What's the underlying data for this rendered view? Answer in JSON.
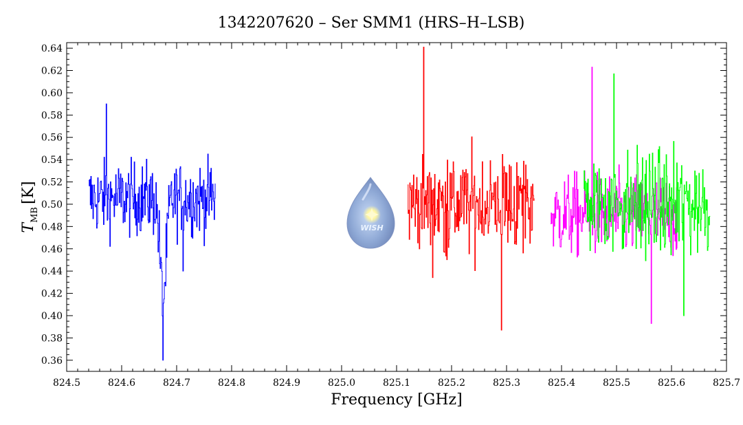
{
  "chart_data": {
    "type": "line",
    "title": "1342207620 – Ser SMM1 (HRS–H–LSB)",
    "xlabel": "Frequency [GHz]",
    "ylabel_main": "T",
    "ylabel_sub": "MB",
    "ylabel_unit": "[K]",
    "xlim": [
      824.5,
      825.7
    ],
    "ylim": [
      0.35,
      0.645
    ],
    "xticks": [
      "824.5",
      "824.6",
      "824.7",
      "824.8",
      "824.9",
      "825.0",
      "825.1",
      "825.2",
      "825.3",
      "825.4",
      "825.5",
      "825.6",
      "825.7"
    ],
    "yticks": [
      "0.36",
      "0.38",
      "0.40",
      "0.42",
      "0.44",
      "0.46",
      "0.48",
      "0.50",
      "0.52",
      "0.54",
      "0.56",
      "0.58",
      "0.60",
      "0.62",
      "0.64"
    ],
    "grid": false,
    "logo_text": "WISH",
    "series": [
      {
        "color": "#0000ff",
        "x_range": [
          824.54,
          824.77
        ],
        "points": 240,
        "baseline": 0.505,
        "noise": 0.03,
        "absorption": {
          "center": 824.675,
          "depth": 0.09,
          "width": 0.008
        },
        "extremes": {
          "min": 0.36,
          "max": 0.59
        }
      },
      {
        "color": "#ff0000",
        "x_range": [
          825.12,
          825.35
        ],
        "points": 240,
        "baseline": 0.5,
        "noise": 0.042,
        "extremes": {
          "min": 0.387,
          "max": 0.641
        }
      },
      {
        "color": "#ff00ff",
        "x_range": [
          825.38,
          825.61
        ],
        "points": 240,
        "baseline": 0.49,
        "noise": 0.034,
        "extremes": {
          "min": 0.393,
          "max": 0.623
        }
      },
      {
        "color": "#00ff00",
        "x_range": [
          825.44,
          825.67
        ],
        "points": 240,
        "baseline": 0.5,
        "noise": 0.042,
        "extremes": {
          "min": 0.4,
          "max": 0.617
        }
      }
    ]
  }
}
